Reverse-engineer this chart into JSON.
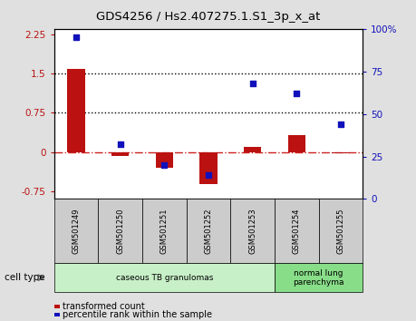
{
  "title": "GDS4256 / Hs2.407275.1.S1_3p_x_at",
  "samples": [
    "GSM501249",
    "GSM501250",
    "GSM501251",
    "GSM501252",
    "GSM501253",
    "GSM501254",
    "GSM501255"
  ],
  "transformed_count": [
    1.58,
    -0.07,
    -0.3,
    -0.62,
    0.1,
    0.32,
    -0.03
  ],
  "percentile_rank": [
    95,
    32,
    20,
    14,
    68,
    62,
    44
  ],
  "ylim_left": [
    -0.9,
    2.35
  ],
  "ylim_right": [
    0,
    100
  ],
  "yticks_left": [
    -0.75,
    0,
    0.75,
    1.5,
    2.25
  ],
  "yticks_right": [
    0,
    25,
    50,
    75,
    100
  ],
  "hlines": [
    1.5,
    0.75
  ],
  "bar_color": "#bb1111",
  "dot_color": "#1111bb",
  "zero_line_color": "#cc2222",
  "cell_type_groups": [
    {
      "label": "caseous TB granulomas",
      "samples": [
        0,
        1,
        2,
        3,
        4
      ],
      "color": "#c8f0c8"
    },
    {
      "label": "normal lung\nparenchyma",
      "samples": [
        5,
        6
      ],
      "color": "#88dd88"
    }
  ],
  "legend_bar_label": "transformed count",
  "legend_dot_label": "percentile rank within the sample",
  "cell_type_label": "cell type",
  "background_color": "#e0e0e0",
  "plot_bg_color": "#ffffff",
  "sample_box_color": "#cccccc",
  "bar_width": 0.4
}
